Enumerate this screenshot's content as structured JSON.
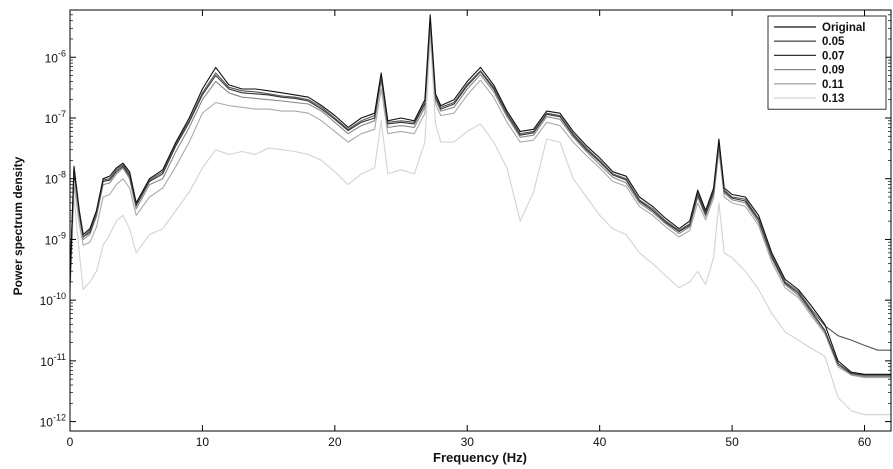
{
  "chart_data": {
    "type": "line",
    "title": "",
    "xlabel": "Frequency (Hz)",
    "ylabel": "Power spectrum density",
    "xlim": [
      0,
      62
    ],
    "ylim": [
      7e-13,
      6e-06
    ],
    "yscale": "log",
    "x_ticks": [
      0,
      10,
      20,
      30,
      40,
      50,
      60
    ],
    "x_tick_labels": [
      "0",
      "10",
      "20",
      "30",
      "40",
      "50",
      "60"
    ],
    "y_ticks": [
      1e-12,
      1e-11,
      1e-10,
      1e-09,
      1e-08,
      1e-07,
      1e-06
    ],
    "y_tick_labels": [
      {
        "base": "10",
        "exp": "-12"
      },
      {
        "base": "10",
        "exp": "-11"
      },
      {
        "base": "10",
        "exp": "-10"
      },
      {
        "base": "10",
        "exp": "-9"
      },
      {
        "base": "10",
        "exp": "-8"
      },
      {
        "base": "10",
        "exp": "-7"
      },
      {
        "base": "10",
        "exp": "-6"
      }
    ],
    "grid": false,
    "legend_position": "top-right",
    "x": [
      0,
      0.3,
      0.7,
      1,
      1.5,
      2,
      2.5,
      3,
      3.5,
      4,
      4.5,
      5,
      6,
      7,
      8,
      9,
      10,
      11,
      12,
      13,
      14,
      15,
      16,
      17,
      18,
      19,
      20,
      21,
      22,
      23,
      23.5,
      24,
      25,
      26,
      26.8,
      27.2,
      27.6,
      28,
      29,
      30,
      31,
      32,
      33,
      34,
      35,
      36,
      37,
      38,
      39,
      40,
      41,
      42,
      43,
      44,
      45,
      46,
      46.8,
      47.4,
      48,
      48.6,
      49,
      49.4,
      50,
      51,
      52,
      53,
      54,
      55,
      56,
      57,
      58,
      59,
      60,
      61,
      62
    ],
    "series": [
      {
        "name": "Original",
        "color": "#111111",
        "values": [
          2e-10,
          1.6e-08,
          3e-09,
          1.2e-09,
          1.5e-09,
          3e-09,
          1e-08,
          1.1e-08,
          1.5e-08,
          1.8e-08,
          1.3e-08,
          4e-09,
          1e-08,
          1.4e-08,
          4e-08,
          1e-07,
          3e-07,
          6.8e-07,
          3.5e-07,
          3e-07,
          3e-07,
          2.8e-07,
          2.6e-07,
          2.4e-07,
          2.2e-07,
          1.6e-07,
          1.1e-07,
          7e-08,
          1e-07,
          1.2e-07,
          5.5e-07,
          9e-08,
          1e-07,
          9e-08,
          2e-07,
          5e-06,
          2.5e-07,
          1.6e-07,
          2e-07,
          4e-07,
          6.8e-07,
          3.5e-07,
          1.3e-07,
          6e-08,
          6.5e-08,
          1.3e-07,
          1.2e-07,
          6e-08,
          3.5e-08,
          2.2e-08,
          1.3e-08,
          1.1e-08,
          5e-09,
          3.5e-09,
          2.2e-09,
          1.5e-09,
          2e-09,
          6.5e-09,
          3e-09,
          7e-09,
          4.5e-08,
          7e-09,
          5.5e-09,
          5e-09,
          2.5e-09,
          6e-10,
          2.2e-10,
          1.5e-10,
          8e-11,
          4e-11,
          1e-11,
          6.5e-12,
          6e-12,
          6e-12,
          6e-12
        ]
      },
      {
        "name": "0.05",
        "color": "#555555",
        "values": [
          2e-10,
          1.5e-08,
          2.8e-09,
          1.1e-09,
          1.4e-09,
          2.8e-09,
          9.5e-09,
          1e-08,
          1.4e-08,
          1.7e-08,
          1.2e-08,
          3.8e-09,
          9.5e-09,
          1.3e-08,
          3.8e-08,
          9e-08,
          2.6e-07,
          5.5e-07,
          3.2e-07,
          2.8e-07,
          2.7e-07,
          2.5e-07,
          2.3e-07,
          2.2e-07,
          2e-07,
          1.5e-07,
          1e-07,
          6.5e-08,
          9e-08,
          1.1e-07,
          5e-07,
          8.5e-08,
          9e-08,
          8.5e-08,
          1.8e-07,
          4.5e-06,
          2.3e-07,
          1.5e-07,
          1.8e-07,
          3.6e-07,
          6e-07,
          3.2e-07,
          1.2e-07,
          5.5e-08,
          6e-08,
          1.2e-07,
          1.1e-07,
          5.5e-08,
          3.2e-08,
          2e-08,
          1.2e-08,
          1e-08,
          4.5e-09,
          3.2e-09,
          2e-09,
          1.4e-09,
          1.8e-09,
          6e-09,
          2.8e-09,
          6.5e-09,
          4e-08,
          6.5e-09,
          5e-09,
          4.6e-09,
          2.2e-09,
          5.5e-10,
          2e-10,
          1.4e-10,
          7e-11,
          3.8e-11,
          2.6e-11,
          2.2e-11,
          1.8e-11,
          1.5e-11,
          1.5e-11
        ]
      },
      {
        "name": "0.07",
        "color": "#333333",
        "values": [
          2e-10,
          1.4e-08,
          2.7e-09,
          1.1e-09,
          1.3e-09,
          2.7e-09,
          9e-09,
          9.5e-09,
          1.3e-08,
          1.6e-08,
          1.1e-08,
          3.6e-09,
          9e-09,
          1.2e-08,
          3.5e-08,
          8.5e-08,
          2.4e-07,
          5e-07,
          3e-07,
          2.6e-07,
          2.5e-07,
          2.4e-07,
          2.2e-07,
          2.1e-07,
          1.9e-07,
          1.4e-07,
          9.5e-08,
          6.2e-08,
          8.5e-08,
          1e-07,
          4.8e-07,
          8e-08,
          8.5e-08,
          8e-08,
          1.7e-07,
          4.2e-06,
          2.2e-07,
          1.4e-07,
          1.7e-07,
          3.4e-07,
          5.8e-07,
          3e-07,
          1.15e-07,
          5.2e-08,
          5.7e-08,
          1.15e-07,
          1.05e-07,
          5.2e-08,
          3e-08,
          1.9e-08,
          1.15e-08,
          9.5e-09,
          4.3e-09,
          3e-09,
          1.9e-09,
          1.35e-09,
          1.7e-09,
          5.5e-09,
          2.6e-09,
          6e-09,
          3.8e-08,
          6.2e-09,
          4.8e-09,
          4.3e-09,
          2.1e-09,
          5.2e-10,
          1.9e-10,
          1.3e-10,
          6.5e-11,
          3.2e-11,
          9e-12,
          6.2e-12,
          5.8e-12,
          5.8e-12,
          5.8e-12
        ]
      },
      {
        "name": "0.09",
        "color": "#888888",
        "values": [
          1.8e-10,
          1.2e-08,
          2.4e-09,
          1e-09,
          1.2e-09,
          2.4e-09,
          8e-09,
          8.5e-09,
          1.2e-08,
          1.5e-08,
          1e-08,
          3.2e-09,
          8e-09,
          1e-08,
          2.8e-08,
          7e-08,
          2e-07,
          4e-07,
          2.6e-07,
          2.2e-07,
          2.1e-07,
          2e-07,
          1.9e-07,
          1.8e-07,
          1.7e-07,
          1.3e-07,
          8.5e-08,
          5.5e-08,
          7.5e-08,
          9e-08,
          4.2e-07,
          7e-08,
          7.5e-08,
          7e-08,
          1.5e-07,
          3.8e-06,
          2e-07,
          1.3e-07,
          1.5e-07,
          3e-07,
          5.2e-07,
          2.7e-07,
          1.05e-07,
          4.8e-08,
          5.2e-08,
          1.05e-07,
          9.5e-08,
          4.8e-08,
          2.8e-08,
          1.7e-08,
          1.05e-08,
          8.5e-09,
          4e-09,
          2.8e-09,
          1.8e-09,
          1.25e-09,
          1.6e-09,
          5e-09,
          2.4e-09,
          5.5e-09,
          3.4e-08,
          5.8e-09,
          4.5e-09,
          4e-09,
          1.9e-09,
          4.8e-10,
          1.8e-10,
          1.2e-10,
          6e-11,
          3e-11,
          8.5e-12,
          6e-12,
          5.5e-12,
          5.5e-12,
          5.5e-12
        ]
      },
      {
        "name": "0.11",
        "color": "#aaaaaa",
        "values": [
          1.5e-10,
          8e-09,
          1.8e-09,
          8e-10,
          9e-10,
          1.6e-09,
          5e-09,
          5.5e-09,
          8e-09,
          1e-08,
          7e-09,
          2.5e-09,
          5e-09,
          7e-09,
          1.6e-08,
          4e-08,
          1.2e-07,
          1.8e-07,
          1.6e-07,
          1.5e-07,
          1.4e-07,
          1.4e-07,
          1.3e-07,
          1.3e-07,
          1.2e-07,
          9e-08,
          6e-08,
          4e-08,
          5.5e-08,
          6.5e-08,
          3e-07,
          5.5e-08,
          6e-08,
          5.5e-08,
          1.2e-07,
          3e-06,
          1.7e-07,
          1.1e-07,
          1.2e-07,
          2.4e-07,
          4.2e-07,
          2.2e-07,
          8.5e-08,
          4e-08,
          4.3e-08,
          8.5e-08,
          7.5e-08,
          4e-08,
          2.4e-08,
          1.5e-08,
          9e-09,
          7.5e-09,
          3.5e-09,
          2.5e-09,
          1.6e-09,
          1.1e-09,
          1.4e-09,
          4e-09,
          2.1e-09,
          4.8e-09,
          2.8e-08,
          5e-09,
          4e-09,
          3.5e-09,
          1.7e-09,
          4.2e-10,
          1.6e-10,
          1.1e-10,
          5.5e-11,
          2.8e-11,
          8e-12,
          5.8e-12,
          5.3e-12,
          5.3e-12,
          5.3e-12
        ]
      },
      {
        "name": "0.13",
        "color": "#d3d3d3",
        "values": [
          1.2e-10,
          5e-09,
          6e-10,
          1.5e-10,
          2e-10,
          3e-10,
          8e-10,
          1.2e-09,
          2e-09,
          2.5e-09,
          1.5e-09,
          6e-10,
          1.2e-09,
          1.5e-09,
          3e-09,
          6e-09,
          1.5e-08,
          3e-08,
          2.5e-08,
          2.8e-08,
          2.5e-08,
          3.2e-08,
          3e-08,
          2.8e-08,
          2.5e-08,
          2e-08,
          1.3e-08,
          8e-09,
          1.2e-08,
          1.5e-08,
          9e-08,
          1.2e-08,
          1.4e-08,
          1.2e-08,
          4e-08,
          2e-06,
          8e-08,
          4e-08,
          4e-08,
          6e-08,
          8e-08,
          4e-08,
          1.5e-08,
          2e-09,
          6e-09,
          4.5e-08,
          4e-08,
          1e-08,
          5e-09,
          2.5e-09,
          1.5e-09,
          1.2e-09,
          6e-10,
          4e-10,
          2.5e-10,
          1.6e-10,
          2e-10,
          3e-10,
          1.8e-10,
          5e-10,
          4e-09,
          6e-10,
          5e-10,
          3e-10,
          1.5e-10,
          6e-11,
          3e-11,
          2.2e-11,
          1.6e-11,
          1.2e-11,
          2.5e-12,
          1.5e-12,
          1.3e-12,
          1.3e-12,
          1.3e-12
        ]
      }
    ]
  }
}
